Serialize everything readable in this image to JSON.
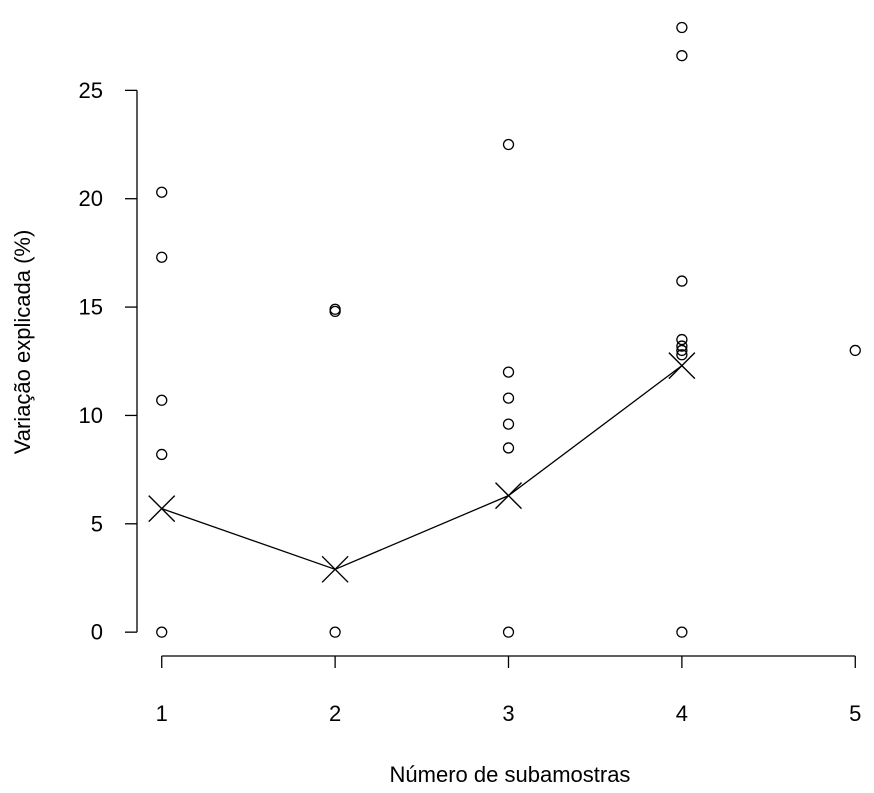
{
  "chart_data": {
    "type": "scatter",
    "title": "",
    "xlabel": "Número de subamostras",
    "ylabel": "Variação explicada (%)",
    "x_ticks": [
      1,
      2,
      3,
      4,
      5
    ],
    "y_ticks": [
      0,
      5,
      10,
      15,
      20,
      25
    ],
    "xlim": [
      0.99,
      5.01
    ],
    "ylim": [
      -1.1,
      28.8
    ],
    "grid": false,
    "points": [
      {
        "x": 1,
        "y": 20.3
      },
      {
        "x": 1,
        "y": 17.3
      },
      {
        "x": 1,
        "y": 10.7
      },
      {
        "x": 1,
        "y": 8.2
      },
      {
        "x": 1,
        "y": 0
      },
      {
        "x": 2,
        "y": 14.9
      },
      {
        "x": 2,
        "y": 14.8
      },
      {
        "x": 2,
        "y": 0
      },
      {
        "x": 3,
        "y": 22.5
      },
      {
        "x": 3,
        "y": 12.0
      },
      {
        "x": 3,
        "y": 10.8
      },
      {
        "x": 3,
        "y": 9.6
      },
      {
        "x": 3,
        "y": 8.5
      },
      {
        "x": 3,
        "y": 0
      },
      {
        "x": 4,
        "y": 27.9
      },
      {
        "x": 4,
        "y": 26.6
      },
      {
        "x": 4,
        "y": 16.2
      },
      {
        "x": 4,
        "y": 13.5
      },
      {
        "x": 4,
        "y": 13.2
      },
      {
        "x": 4,
        "y": 13.0
      },
      {
        "x": 4,
        "y": 12.8
      },
      {
        "x": 4,
        "y": 0
      },
      {
        "x": 5,
        "y": 13.0
      }
    ],
    "means": [
      {
        "x": 1,
        "y": 5.7
      },
      {
        "x": 2,
        "y": 2.9
      },
      {
        "x": 3,
        "y": 6.3
      },
      {
        "x": 4,
        "y": 12.3
      }
    ]
  }
}
